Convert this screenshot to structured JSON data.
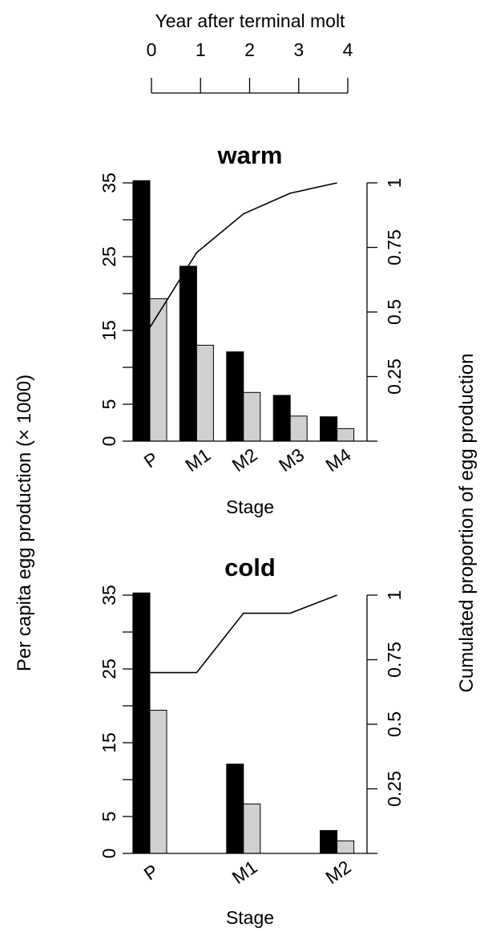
{
  "top_axis": {
    "label": "Year after terminal molt",
    "ticks": [
      "0",
      "1",
      "2",
      "3",
      "4"
    ]
  },
  "y_left_label": "Per capita egg production (× 1000)",
  "y_right_label": "Cumulated proportion of egg production",
  "chart_data": [
    {
      "type": "bar",
      "title": "warm",
      "xlabel": "Stage",
      "ylabel": "Per capita egg production (× 1000)",
      "y2label": "Cumulated proportion of egg production",
      "categories": [
        "P",
        "M1",
        "M2",
        "M3",
        "M4"
      ],
      "ylim": [
        0,
        35
      ],
      "yticks": [
        "0",
        "5",
        "15",
        "25",
        "35"
      ],
      "y2lim": [
        0,
        1
      ],
      "y2ticks": [
        "0.25",
        "0.5",
        "0.75",
        "1"
      ],
      "series": [
        {
          "kind": "bar",
          "color": "#000000",
          "values": [
            35.3,
            23.7,
            12.1,
            6.2,
            3.3
          ]
        },
        {
          "kind": "bar",
          "color": "#d0d0d0",
          "values": [
            19.3,
            13.0,
            6.6,
            3.4,
            1.7
          ]
        },
        {
          "kind": "line",
          "axis": "right",
          "color": "#000000",
          "values": [
            0.44,
            0.73,
            0.88,
            0.96,
            1.0
          ]
        }
      ]
    },
    {
      "type": "bar",
      "title": "cold",
      "xlabel": "Stage",
      "ylabel": "Per capita egg production (× 1000)",
      "y2label": "Cumulated proportion of egg production",
      "categories": [
        "P",
        "",
        "M1",
        "",
        "M2"
      ],
      "ylim": [
        0,
        35
      ],
      "yticks": [
        "0",
        "5",
        "15",
        "25",
        "35"
      ],
      "y2lim": [
        0,
        1
      ],
      "y2ticks": [
        "0.25",
        "0.5",
        "0.75",
        "1"
      ],
      "series": [
        {
          "kind": "bar",
          "color": "#000000",
          "values": [
            35.3,
            0,
            12.1,
            0,
            3.1
          ]
        },
        {
          "kind": "bar",
          "color": "#d0d0d0",
          "values": [
            19.4,
            0,
            6.7,
            0,
            1.7
          ]
        },
        {
          "kind": "line",
          "axis": "right",
          "color": "#000000",
          "values": [
            0.7,
            0.7,
            0.93,
            0.93,
            1.0
          ]
        }
      ]
    }
  ]
}
